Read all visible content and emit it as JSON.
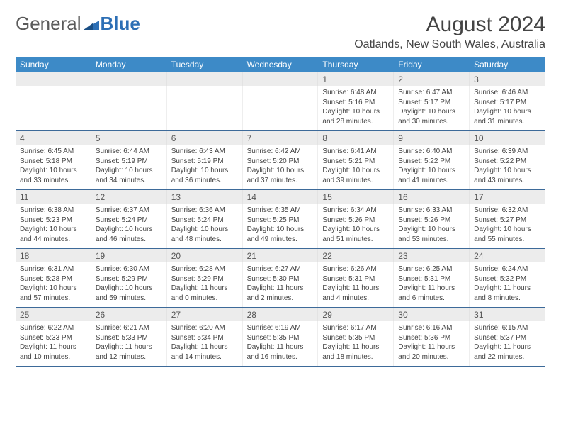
{
  "logo": {
    "text1": "General",
    "text2": "Blue"
  },
  "title": "August 2024",
  "subtitle": "Oatlands, New South Wales, Australia",
  "colors": {
    "header_bg": "#3d8ac7",
    "header_text": "#ffffff",
    "daynum_bg": "#ececec",
    "row_divider": "#3d6a99",
    "logo_general": "#5a5a5a",
    "logo_blue": "#2d6fb5",
    "logo_icon": "#2d6fb5"
  },
  "weekdays": [
    "Sunday",
    "Monday",
    "Tuesday",
    "Wednesday",
    "Thursday",
    "Friday",
    "Saturday"
  ],
  "weeks": [
    [
      {
        "n": "",
        "sr": "",
        "ss": "",
        "dl": ""
      },
      {
        "n": "",
        "sr": "",
        "ss": "",
        "dl": ""
      },
      {
        "n": "",
        "sr": "",
        "ss": "",
        "dl": ""
      },
      {
        "n": "",
        "sr": "",
        "ss": "",
        "dl": ""
      },
      {
        "n": "1",
        "sr": "Sunrise: 6:48 AM",
        "ss": "Sunset: 5:16 PM",
        "dl": "Daylight: 10 hours and 28 minutes."
      },
      {
        "n": "2",
        "sr": "Sunrise: 6:47 AM",
        "ss": "Sunset: 5:17 PM",
        "dl": "Daylight: 10 hours and 30 minutes."
      },
      {
        "n": "3",
        "sr": "Sunrise: 6:46 AM",
        "ss": "Sunset: 5:17 PM",
        "dl": "Daylight: 10 hours and 31 minutes."
      }
    ],
    [
      {
        "n": "4",
        "sr": "Sunrise: 6:45 AM",
        "ss": "Sunset: 5:18 PM",
        "dl": "Daylight: 10 hours and 33 minutes."
      },
      {
        "n": "5",
        "sr": "Sunrise: 6:44 AM",
        "ss": "Sunset: 5:19 PM",
        "dl": "Daylight: 10 hours and 34 minutes."
      },
      {
        "n": "6",
        "sr": "Sunrise: 6:43 AM",
        "ss": "Sunset: 5:19 PM",
        "dl": "Daylight: 10 hours and 36 minutes."
      },
      {
        "n": "7",
        "sr": "Sunrise: 6:42 AM",
        "ss": "Sunset: 5:20 PM",
        "dl": "Daylight: 10 hours and 37 minutes."
      },
      {
        "n": "8",
        "sr": "Sunrise: 6:41 AM",
        "ss": "Sunset: 5:21 PM",
        "dl": "Daylight: 10 hours and 39 minutes."
      },
      {
        "n": "9",
        "sr": "Sunrise: 6:40 AM",
        "ss": "Sunset: 5:22 PM",
        "dl": "Daylight: 10 hours and 41 minutes."
      },
      {
        "n": "10",
        "sr": "Sunrise: 6:39 AM",
        "ss": "Sunset: 5:22 PM",
        "dl": "Daylight: 10 hours and 43 minutes."
      }
    ],
    [
      {
        "n": "11",
        "sr": "Sunrise: 6:38 AM",
        "ss": "Sunset: 5:23 PM",
        "dl": "Daylight: 10 hours and 44 minutes."
      },
      {
        "n": "12",
        "sr": "Sunrise: 6:37 AM",
        "ss": "Sunset: 5:24 PM",
        "dl": "Daylight: 10 hours and 46 minutes."
      },
      {
        "n": "13",
        "sr": "Sunrise: 6:36 AM",
        "ss": "Sunset: 5:24 PM",
        "dl": "Daylight: 10 hours and 48 minutes."
      },
      {
        "n": "14",
        "sr": "Sunrise: 6:35 AM",
        "ss": "Sunset: 5:25 PM",
        "dl": "Daylight: 10 hours and 49 minutes."
      },
      {
        "n": "15",
        "sr": "Sunrise: 6:34 AM",
        "ss": "Sunset: 5:26 PM",
        "dl": "Daylight: 10 hours and 51 minutes."
      },
      {
        "n": "16",
        "sr": "Sunrise: 6:33 AM",
        "ss": "Sunset: 5:26 PM",
        "dl": "Daylight: 10 hours and 53 minutes."
      },
      {
        "n": "17",
        "sr": "Sunrise: 6:32 AM",
        "ss": "Sunset: 5:27 PM",
        "dl": "Daylight: 10 hours and 55 minutes."
      }
    ],
    [
      {
        "n": "18",
        "sr": "Sunrise: 6:31 AM",
        "ss": "Sunset: 5:28 PM",
        "dl": "Daylight: 10 hours and 57 minutes."
      },
      {
        "n": "19",
        "sr": "Sunrise: 6:30 AM",
        "ss": "Sunset: 5:29 PM",
        "dl": "Daylight: 10 hours and 59 minutes."
      },
      {
        "n": "20",
        "sr": "Sunrise: 6:28 AM",
        "ss": "Sunset: 5:29 PM",
        "dl": "Daylight: 11 hours and 0 minutes."
      },
      {
        "n": "21",
        "sr": "Sunrise: 6:27 AM",
        "ss": "Sunset: 5:30 PM",
        "dl": "Daylight: 11 hours and 2 minutes."
      },
      {
        "n": "22",
        "sr": "Sunrise: 6:26 AM",
        "ss": "Sunset: 5:31 PM",
        "dl": "Daylight: 11 hours and 4 minutes."
      },
      {
        "n": "23",
        "sr": "Sunrise: 6:25 AM",
        "ss": "Sunset: 5:31 PM",
        "dl": "Daylight: 11 hours and 6 minutes."
      },
      {
        "n": "24",
        "sr": "Sunrise: 6:24 AM",
        "ss": "Sunset: 5:32 PM",
        "dl": "Daylight: 11 hours and 8 minutes."
      }
    ],
    [
      {
        "n": "25",
        "sr": "Sunrise: 6:22 AM",
        "ss": "Sunset: 5:33 PM",
        "dl": "Daylight: 11 hours and 10 minutes."
      },
      {
        "n": "26",
        "sr": "Sunrise: 6:21 AM",
        "ss": "Sunset: 5:33 PM",
        "dl": "Daylight: 11 hours and 12 minutes."
      },
      {
        "n": "27",
        "sr": "Sunrise: 6:20 AM",
        "ss": "Sunset: 5:34 PM",
        "dl": "Daylight: 11 hours and 14 minutes."
      },
      {
        "n": "28",
        "sr": "Sunrise: 6:19 AM",
        "ss": "Sunset: 5:35 PM",
        "dl": "Daylight: 11 hours and 16 minutes."
      },
      {
        "n": "29",
        "sr": "Sunrise: 6:17 AM",
        "ss": "Sunset: 5:35 PM",
        "dl": "Daylight: 11 hours and 18 minutes."
      },
      {
        "n": "30",
        "sr": "Sunrise: 6:16 AM",
        "ss": "Sunset: 5:36 PM",
        "dl": "Daylight: 11 hours and 20 minutes."
      },
      {
        "n": "31",
        "sr": "Sunrise: 6:15 AM",
        "ss": "Sunset: 5:37 PM",
        "dl": "Daylight: 11 hours and 22 minutes."
      }
    ]
  ]
}
